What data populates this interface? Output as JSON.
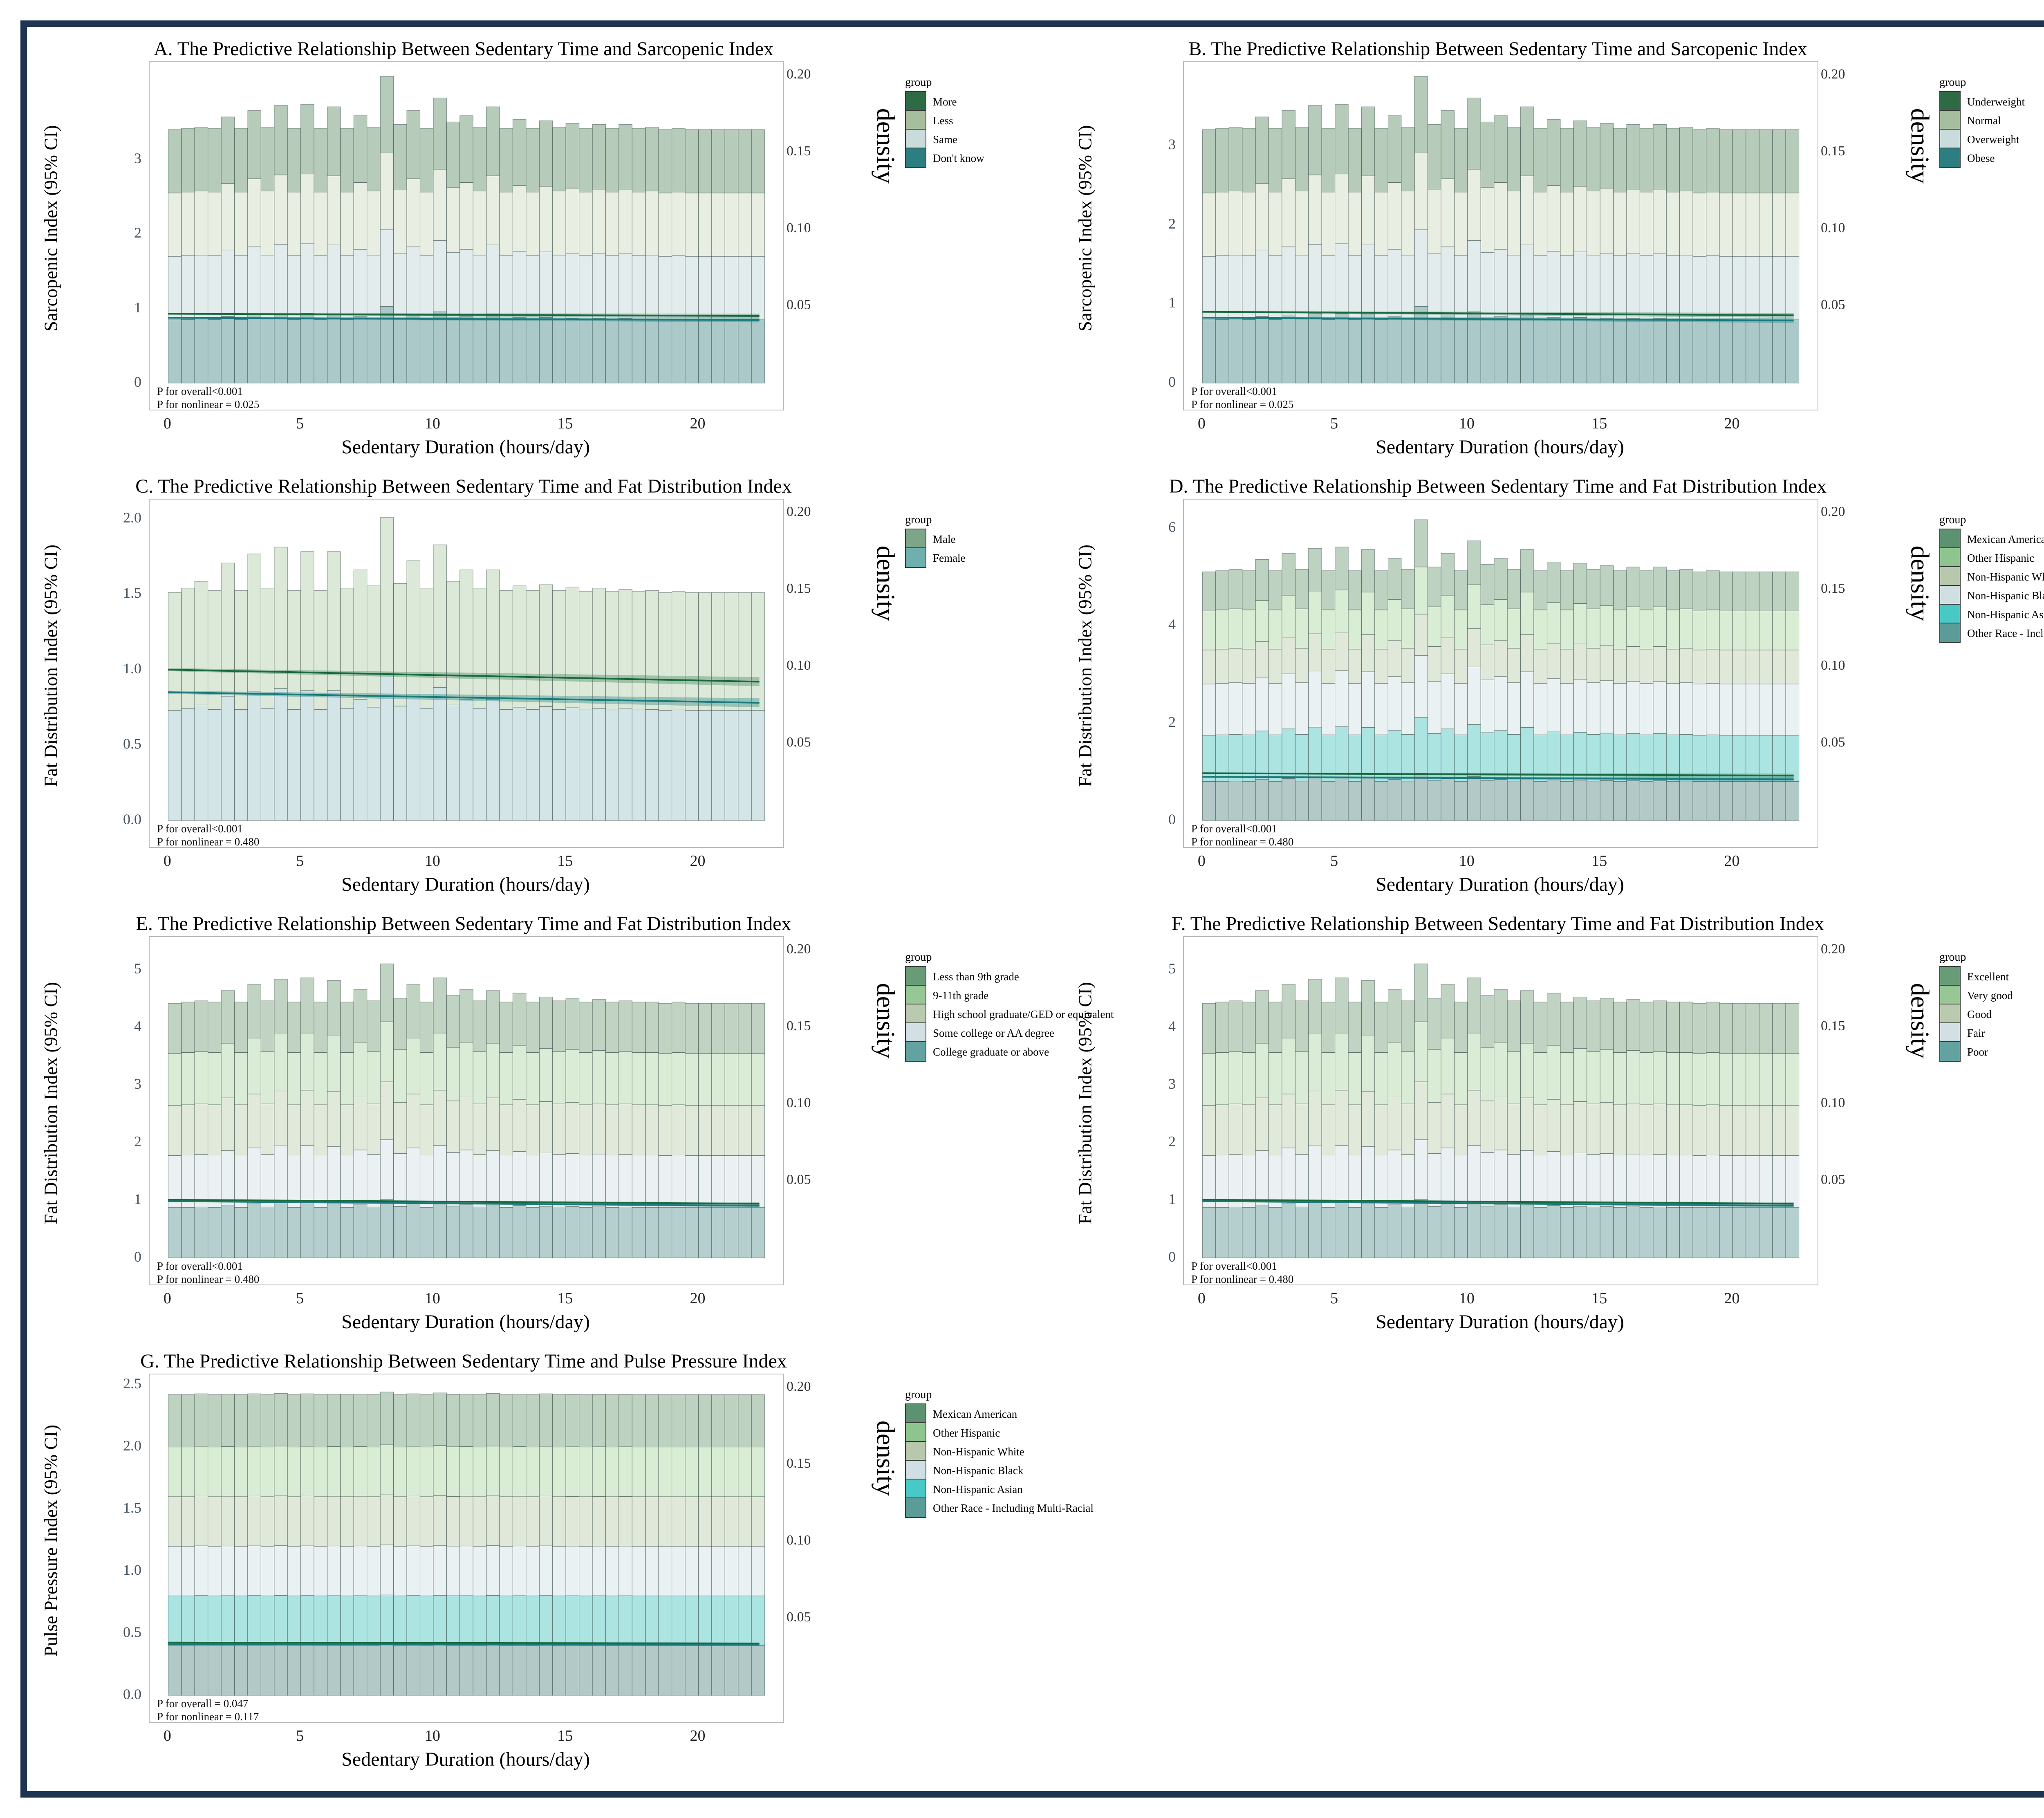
{
  "figure": {
    "border_color": "#1e3450",
    "background": "#ffffff"
  },
  "axes_shared": {
    "x_label": "Sedentary Duration (hours/day)",
    "x_ticks": [
      "0",
      "5",
      "10",
      "15",
      "20"
    ],
    "x_min": -0.7,
    "x_max": 23.2,
    "bar_width": 0.5,
    "right_axis_label": "density",
    "right_ticks": [
      "0.20",
      "0.15",
      "0.10",
      "0.05"
    ],
    "right_tick_scale_max": 0.206,
    "legend_title": "group",
    "grid": false,
    "legend_position": "right"
  },
  "chart_data": [
    {
      "id": "A",
      "type": "bar",
      "title": "A. The Predictive Relationship Between Sedentary Time and Sarcopenic Index",
      "y_label": "Sarcopenic Index (95% CI)",
      "y_ticks": [
        "0",
        "1",
        "2",
        "3"
      ],
      "y_max": 4.25,
      "flat_total": 3.4,
      "p_overall": "P for overall<0.001",
      "p_nonlinear": "P for nonlinear = 0.025",
      "groups": [
        {
          "label": "More",
          "swatch": "#2e6b45",
          "fill": "#b6cbb9"
        },
        {
          "label": "Less",
          "swatch": "#a6bd9e",
          "fill": "#e9eee3"
        },
        {
          "label": "Same",
          "swatch": "#cadbdb",
          "fill": "#e2ecec"
        },
        {
          "label": "Don't know",
          "swatch": "#2d7e81",
          "fill": "#abc9c8"
        }
      ],
      "fractions": [
        0.25,
        0.25,
        0.25,
        0.25
      ],
      "bar_multipliers": [
        1.0,
        1.005,
        1.01,
        1.005,
        1.05,
        1.005,
        1.075,
        1.01,
        1.095,
        1.005,
        1.1,
        1.005,
        1.09,
        1.005,
        1.055,
        1.01,
        1.21,
        1.02,
        1.075,
        1.005,
        1.125,
        1.03,
        1.055,
        1.01,
        1.09,
        1.005,
        1.04,
        1.005,
        1.035,
        1.01,
        1.025,
        1.005,
        1.02,
        1.005,
        1.02,
        1.005,
        1.01,
        1.0,
        1.005,
        1.0,
        1.0,
        1.0,
        1.0,
        1.0,
        1.0
      ],
      "lines": [
        {
          "color": "#17693c",
          "band": "rgba(23,105,60,0.30)",
          "start": 0.93,
          "end": 0.9,
          "w0": 0.012,
          "w1": 0.03
        },
        {
          "color": "#187a7c",
          "band": "rgba(24,122,124,0.35)",
          "start": 0.875,
          "end": 0.845,
          "w0": 0.012,
          "w1": 0.03
        }
      ]
    },
    {
      "id": "B",
      "type": "bar",
      "title": "B. The Predictive Relationship Between Sedentary Time and Sarcopenic Index",
      "y_label": "Sarcopenic Index (95% CI)",
      "y_ticks": [
        "0",
        "1",
        "2",
        "3"
      ],
      "y_max": 4.0,
      "flat_total": 3.2,
      "p_overall": "P for overall<0.001",
      "p_nonlinear": "P for nonlinear = 0.025",
      "groups": [
        {
          "label": "Underweight",
          "swatch": "#2e6b45",
          "fill": "#b6cbb9"
        },
        {
          "label": "Normal",
          "swatch": "#a6bd9e",
          "fill": "#e9eee3"
        },
        {
          "label": "Overweight",
          "swatch": "#cadbdb",
          "fill": "#e2ecec"
        },
        {
          "label": "Obese",
          "swatch": "#2d7e81",
          "fill": "#abc9c8"
        }
      ],
      "fractions": [
        0.25,
        0.25,
        0.25,
        0.25
      ],
      "bar_multipliers": [
        1.0,
        1.005,
        1.01,
        1.005,
        1.05,
        1.005,
        1.075,
        1.01,
        1.095,
        1.005,
        1.1,
        1.005,
        1.09,
        1.005,
        1.055,
        1.01,
        1.21,
        1.02,
        1.075,
        1.005,
        1.125,
        1.03,
        1.055,
        1.01,
        1.09,
        1.005,
        1.04,
        1.005,
        1.035,
        1.01,
        1.025,
        1.005,
        1.02,
        1.005,
        1.02,
        1.005,
        1.01,
        1.0,
        1.005,
        1.0,
        1.0,
        1.0,
        1.0,
        1.0,
        1.0
      ],
      "lines": [
        {
          "color": "#17693c",
          "band": "rgba(23,105,60,0.30)",
          "start": 0.9,
          "end": 0.855,
          "w0": 0.012,
          "w1": 0.03
        },
        {
          "color": "#187a7c",
          "band": "rgba(24,122,124,0.35)",
          "start": 0.825,
          "end": 0.79,
          "w0": 0.012,
          "w1": 0.03
        }
      ]
    },
    {
      "id": "C",
      "type": "bar",
      "title": "C. The Predictive Relationship Between Sedentary Time and Fat Distribution Index",
      "y_label": "Fat Distribution Index (95% CI)",
      "y_ticks": [
        "0.0",
        "0.5",
        "1.0",
        "1.5",
        "2.0"
      ],
      "y_max": 2.1,
      "flat_total": 1.51,
      "p_overall": "P for overall<0.001",
      "p_nonlinear": "P for nonlinear = 0.480",
      "groups": [
        {
          "label": "Male",
          "swatch": "#7ca687",
          "fill": "#dce8d8"
        },
        {
          "label": "Female",
          "swatch": "#6fb0ae",
          "fill": "#d3e5e6"
        }
      ],
      "fractions": [
        0.517,
        0.483
      ],
      "bar_multipliers": [
        1.0,
        1.02,
        1.05,
        1.01,
        1.13,
        1.01,
        1.17,
        1.02,
        1.2,
        1.01,
        1.18,
        1.01,
        1.18,
        1.02,
        1.1,
        1.03,
        1.33,
        1.04,
        1.14,
        1.02,
        1.21,
        1.05,
        1.1,
        1.02,
        1.1,
        1.01,
        1.03,
        1.01,
        1.035,
        1.01,
        1.025,
        1.005,
        1.02,
        1.005,
        1.015,
        1.005,
        1.01,
        1.0,
        1.005,
        1.0,
        1.0,
        1.0,
        1.0,
        1.0,
        1.0
      ],
      "lines": [
        {
          "color": "#17693c",
          "band": "rgba(23,105,60,0.30)",
          "start": 1.0,
          "end": 0.92,
          "w0": 0.01,
          "w1": 0.03
        },
        {
          "color": "#187a7c",
          "band": "rgba(24,122,124,0.35)",
          "start": 0.85,
          "end": 0.78,
          "w0": 0.01,
          "w1": 0.03
        }
      ]
    },
    {
      "id": "D",
      "type": "bar",
      "title": "D. The Predictive Relationship Between Sedentary Time and Fat Distribution Index",
      "y_label": "Fat Distribution Index (95% CI)",
      "y_ticks": [
        "0",
        "2",
        "4",
        "6"
      ],
      "y_max": 6.5,
      "flat_total": 5.1,
      "p_overall": "P for overall<0.001",
      "p_nonlinear": "P for nonlinear = 0.480",
      "groups": [
        {
          "label": "Mexican American",
          "swatch": "#5c9270",
          "fill": "#bdd2c1"
        },
        {
          "label": "Other Hispanic",
          "swatch": "#8ec58f",
          "fill": "#d9ecd4"
        },
        {
          "label": "Non-Hispanic White",
          "swatch": "#b7c8ac",
          "fill": "#e0e8da"
        },
        {
          "label": "Non-Hispanic Black",
          "swatch": "#cfdfe2",
          "fill": "#eaf1f2"
        },
        {
          "label": "Non-Hispanic Asian",
          "swatch": "#49c9c5",
          "fill": "#abe4e1"
        },
        {
          "label": "Other Race - Including Multi-Racial",
          "swatch": "#5b9b98",
          "fill": "#b2c9c8"
        }
      ],
      "fractions": [
        0.157,
        0.157,
        0.137,
        0.206,
        0.186,
        0.157
      ],
      "bar_multipliers": [
        1.0,
        1.005,
        1.01,
        1.005,
        1.05,
        1.005,
        1.075,
        1.01,
        1.095,
        1.005,
        1.1,
        1.005,
        1.09,
        1.005,
        1.055,
        1.01,
        1.21,
        1.02,
        1.075,
        1.005,
        1.125,
        1.03,
        1.055,
        1.01,
        1.09,
        1.005,
        1.04,
        1.005,
        1.035,
        1.01,
        1.025,
        1.005,
        1.02,
        1.005,
        1.02,
        1.005,
        1.01,
        1.0,
        1.005,
        1.0,
        1.0,
        1.0,
        1.0,
        1.0,
        1.0
      ],
      "lines": [
        {
          "color": "#17693c",
          "band": "rgba(23,105,60,0.30)",
          "start": 0.97,
          "end": 0.92,
          "w0": 0.015,
          "w1": 0.04
        },
        {
          "color": "#187a7c",
          "band": "rgba(24,122,124,0.35)",
          "start": 0.895,
          "end": 0.845,
          "w0": 0.015,
          "w1": 0.04
        }
      ]
    },
    {
      "id": "E",
      "type": "bar",
      "title": "E. The Predictive Relationship Between Sedentary Time and Fat Distribution Index",
      "y_label": "Fat Distribution Index (95% CI)",
      "y_ticks": [
        "0",
        "1",
        "2",
        "3",
        "4",
        "5"
      ],
      "y_max": 5.5,
      "flat_total": 4.42,
      "p_overall": "P for overall<0.001",
      "p_nonlinear": "P for nonlinear = 0.480",
      "groups": [
        {
          "label": "Less than 9th grade",
          "swatch": "#689c77",
          "fill": "#c1d4c4"
        },
        {
          "label": "9-11th grade",
          "swatch": "#96c795",
          "fill": "#dbecd6"
        },
        {
          "label": "High school graduate/GED or equivalent",
          "swatch": "#b9caae",
          "fill": "#e1e9db"
        },
        {
          "label": "Some college or AA degree",
          "swatch": "#d2e0e4",
          "fill": "#ebf1f3"
        },
        {
          "label": "College graduate or above",
          "swatch": "#62a3a1",
          "fill": "#b5cfce"
        }
      ],
      "fractions": [
        0.197,
        0.204,
        0.197,
        0.204,
        0.198
      ],
      "bar_multipliers": [
        1.0,
        1.005,
        1.01,
        1.005,
        1.05,
        1.005,
        1.075,
        1.01,
        1.095,
        1.005,
        1.1,
        1.005,
        1.09,
        1.005,
        1.055,
        1.01,
        1.155,
        1.02,
        1.075,
        1.005,
        1.1,
        1.03,
        1.055,
        1.01,
        1.05,
        1.005,
        1.04,
        1.005,
        1.025,
        1.01,
        1.02,
        1.005,
        1.015,
        1.005,
        1.01,
        1.005,
        1.005,
        1.0,
        1.005,
        1.0,
        1.0,
        1.0,
        1.0,
        1.0,
        1.0
      ],
      "lines": [
        {
          "color": "#17693c",
          "band": "rgba(23,105,60,0.30)",
          "start": 1.01,
          "end": 0.94,
          "w0": 0.01,
          "w1": 0.025
        },
        {
          "color": "#187a7c",
          "band": "rgba(24,122,124,0.35)",
          "start": 0.985,
          "end": 0.905,
          "w0": 0.01,
          "w1": 0.025
        }
      ]
    },
    {
      "id": "F",
      "type": "bar",
      "title": "F. The Predictive Relationship Between Sedentary Time and Fat Distribution Index",
      "y_label": "Fat Distribution Index (95% CI)",
      "y_ticks": [
        "0",
        "1",
        "2",
        "3",
        "4",
        "5"
      ],
      "y_max": 5.5,
      "flat_total": 4.42,
      "p_overall": "P for overall<0.001",
      "p_nonlinear": "P for nonlinear = 0.480",
      "groups": [
        {
          "label": "Excellent",
          "swatch": "#689c77",
          "fill": "#c1d4c4"
        },
        {
          "label": "Very good",
          "swatch": "#96c795",
          "fill": "#dbecd6"
        },
        {
          "label": "Good",
          "swatch": "#b9caae",
          "fill": "#e1e9db"
        },
        {
          "label": "Fair",
          "swatch": "#d2e0e4",
          "fill": "#ebf1f3"
        },
        {
          "label": "Poor",
          "swatch": "#62a3a1",
          "fill": "#b5cfce"
        }
      ],
      "fractions": [
        0.197,
        0.204,
        0.197,
        0.204,
        0.198
      ],
      "bar_multipliers": [
        1.0,
        1.005,
        1.01,
        1.005,
        1.05,
        1.005,
        1.075,
        1.01,
        1.095,
        1.005,
        1.1,
        1.005,
        1.09,
        1.005,
        1.055,
        1.01,
        1.155,
        1.02,
        1.075,
        1.005,
        1.1,
        1.03,
        1.055,
        1.01,
        1.05,
        1.005,
        1.04,
        1.005,
        1.025,
        1.01,
        1.02,
        1.005,
        1.015,
        1.005,
        1.01,
        1.005,
        1.005,
        1.0,
        1.005,
        1.0,
        1.0,
        1.0,
        1.0,
        1.0,
        1.0
      ],
      "lines": [
        {
          "color": "#17693c",
          "band": "rgba(23,105,60,0.30)",
          "start": 1.01,
          "end": 0.94,
          "w0": 0.01,
          "w1": 0.025
        },
        {
          "color": "#187a7c",
          "band": "rgba(24,122,124,0.35)",
          "start": 0.985,
          "end": 0.905,
          "w0": 0.01,
          "w1": 0.025
        }
      ]
    },
    {
      "id": "G",
      "type": "bar",
      "title": "G. The Predictive Relationship Between Sedentary Time and Pulse Pressure Index",
      "y_label": "Pulse Pressure Index (95% CI)",
      "y_ticks": [
        "0.0",
        "0.5",
        "1.0",
        "1.5",
        "2.0",
        "2.5"
      ],
      "y_max": 2.55,
      "flat_total": 2.42,
      "p_overall": "P for overall = 0.047",
      "p_nonlinear": "P for nonlinear = 0.117",
      "groups": [
        {
          "label": "Mexican American",
          "swatch": "#5c9270",
          "fill": "#bdd2c1"
        },
        {
          "label": "Other Hispanic",
          "swatch": "#8ec58f",
          "fill": "#d9ecd4"
        },
        {
          "label": "Non-Hispanic White",
          "swatch": "#b7c8ac",
          "fill": "#e0e8da"
        },
        {
          "label": "Non-Hispanic Black",
          "swatch": "#cfdfe2",
          "fill": "#eaf1f2"
        },
        {
          "label": "Non-Hispanic Asian",
          "swatch": "#49c9c5",
          "fill": "#abe4e1"
        },
        {
          "label": "Other Race - Including Multi-Racial",
          "swatch": "#5b9b98",
          "fill": "#b2c9c8"
        }
      ],
      "fractions": [
        0.174,
        0.165,
        0.165,
        0.165,
        0.165,
        0.166
      ],
      "bar_multipliers": [
        1.0,
        1.0,
        1.003,
        1.0,
        1.002,
        1.0,
        1.003,
        1.0,
        1.004,
        1.0,
        1.003,
        1.0,
        1.002,
        1.0,
        1.002,
        1.0,
        1.009,
        1.0,
        1.003,
        1.0,
        1.006,
        1.001,
        1.002,
        1.0,
        1.004,
        1.0,
        1.002,
        1.0,
        1.003,
        1.0,
        1.001,
        1.0,
        1.001,
        1.0,
        1.001,
        1.0,
        1.0,
        1.0,
        1.0,
        1.0,
        1.0,
        1.0,
        1.0,
        1.0,
        1.0
      ],
      "lines": [
        {
          "color": "#17693c",
          "band": "rgba(23,105,60,0.30)",
          "start": 0.425,
          "end": 0.418,
          "w0": 0.004,
          "w1": 0.006
        },
        {
          "color": "#187a7c",
          "band": "rgba(24,122,124,0.35)",
          "start": 0.412,
          "end": 0.408,
          "w0": 0.005,
          "w1": 0.008
        }
      ]
    }
  ]
}
